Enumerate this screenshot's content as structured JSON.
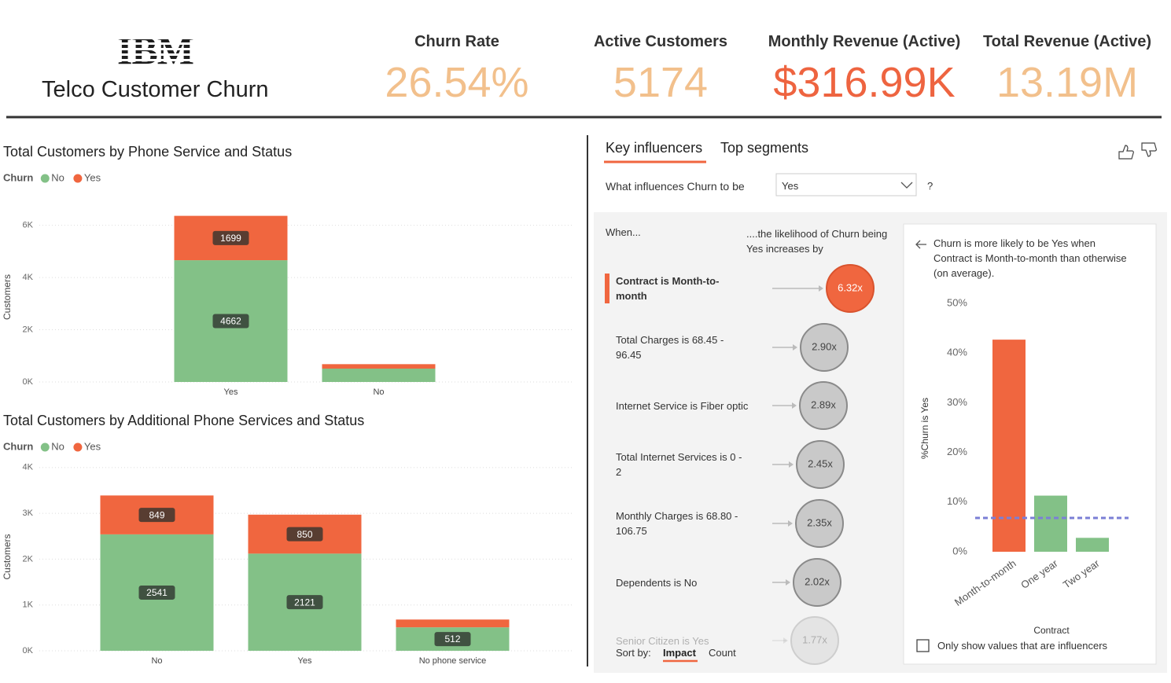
{
  "header": {
    "logo": "IBM",
    "title": "Telco Customer Churn"
  },
  "kpis": [
    {
      "label": "Churn Rate",
      "value": "26.54%",
      "color": "#f2c08c"
    },
    {
      "label": "Active Customers",
      "value": "5174",
      "color": "#f2c08c"
    },
    {
      "label": "Monthly Revenue (Active)",
      "value": "$316.99K",
      "color": "#ee6440"
    },
    {
      "label": "Total Revenue (Active)",
      "value": "13.19M",
      "color": "#f2c08c"
    }
  ],
  "chart_data": [
    {
      "type": "bar",
      "stacked": true,
      "title": "Total Customers by Phone Service and Status",
      "legend_title": "Churn",
      "y_label": "Customers",
      "categories": [
        "Yes",
        "No"
      ],
      "series": [
        {
          "name": "No",
          "color": "#83c187",
          "values": [
            4662,
            512
          ]
        },
        {
          "name": "Yes",
          "color": "#f0663f",
          "values": [
            1699,
            170
          ]
        }
      ],
      "ylim": [
        0,
        6500
      ],
      "yticks": [
        {
          "value": 0,
          "label": "0K"
        },
        {
          "value": 2000,
          "label": "2K"
        },
        {
          "value": 4000,
          "label": "4K"
        },
        {
          "value": 6000,
          "label": "6K"
        }
      ],
      "grid": true
    },
    {
      "type": "bar",
      "stacked": true,
      "title": "Total Customers by Additional Phone Services and Status",
      "legend_title": "Churn",
      "y_label": "Customers",
      "categories": [
        "No",
        "Yes",
        "No phone service"
      ],
      "series": [
        {
          "name": "No",
          "color": "#83c187",
          "values": [
            2541,
            2121,
            512
          ]
        },
        {
          "name": "Yes",
          "color": "#f0663f",
          "values": [
            849,
            850,
            170
          ]
        }
      ],
      "ylim": [
        0,
        4100
      ],
      "yticks": [
        {
          "value": 0,
          "label": "0K"
        },
        {
          "value": 1000,
          "label": "1K"
        },
        {
          "value": 2000,
          "label": "2K"
        },
        {
          "value": 3000,
          "label": "3K"
        },
        {
          "value": 4000,
          "label": "4K"
        }
      ],
      "grid": true
    }
  ],
  "key_influencers": {
    "tabs": [
      "Key influencers",
      "Top segments"
    ],
    "question": "What influences Churn to be",
    "selected": "Yes",
    "help": "?",
    "when_header": "When...",
    "likelihood_header": "....the likelihood of Churn being Yes increases by",
    "influencers": [
      {
        "label": "Contract is Month-to-month",
        "factor": "6.32x"
      },
      {
        "label": "Total Charges is 68.45 - 96.45",
        "factor": "2.90x"
      },
      {
        "label": "Internet Service is Fiber optic",
        "factor": "2.89x"
      },
      {
        "label": "Total Internet Services is 0 - 2",
        "factor": "2.45x"
      },
      {
        "label": "Monthly Charges is 68.80 - 106.75",
        "factor": "2.35x"
      },
      {
        "label": "Dependents is No",
        "factor": "2.02x"
      },
      {
        "label": "Senior Citizen is Yes",
        "factor": "1.77x"
      }
    ],
    "sort_label": "Sort by:",
    "sort_options": [
      "Impact",
      "Count"
    ],
    "detail": {
      "description": "Churn is more likely to be Yes when Contract is Month-to-month than otherwise (on average).",
      "chart": {
        "type": "bar",
        "x_label": "Contract",
        "y_label": "%Churn is Yes",
        "categories": [
          "Month-to-month",
          "One year",
          "Two year"
        ],
        "values": [
          42.7,
          11.3,
          2.8
        ],
        "colors": [
          "#f0663f",
          "#83c187",
          "#83c187"
        ],
        "ylim": [
          0,
          50
        ],
        "yticks": [
          {
            "value": 0,
            "label": "0%"
          },
          {
            "value": 10,
            "label": "10%"
          },
          {
            "value": 20,
            "label": "20%"
          },
          {
            "value": 30,
            "label": "30%"
          },
          {
            "value": 40,
            "label": "40%"
          },
          {
            "value": 50,
            "label": "50%"
          }
        ],
        "average_line": {
          "value": 6.8,
          "color": "#7b7fd6"
        }
      },
      "checkbox": "Only show values that are influencers"
    }
  }
}
